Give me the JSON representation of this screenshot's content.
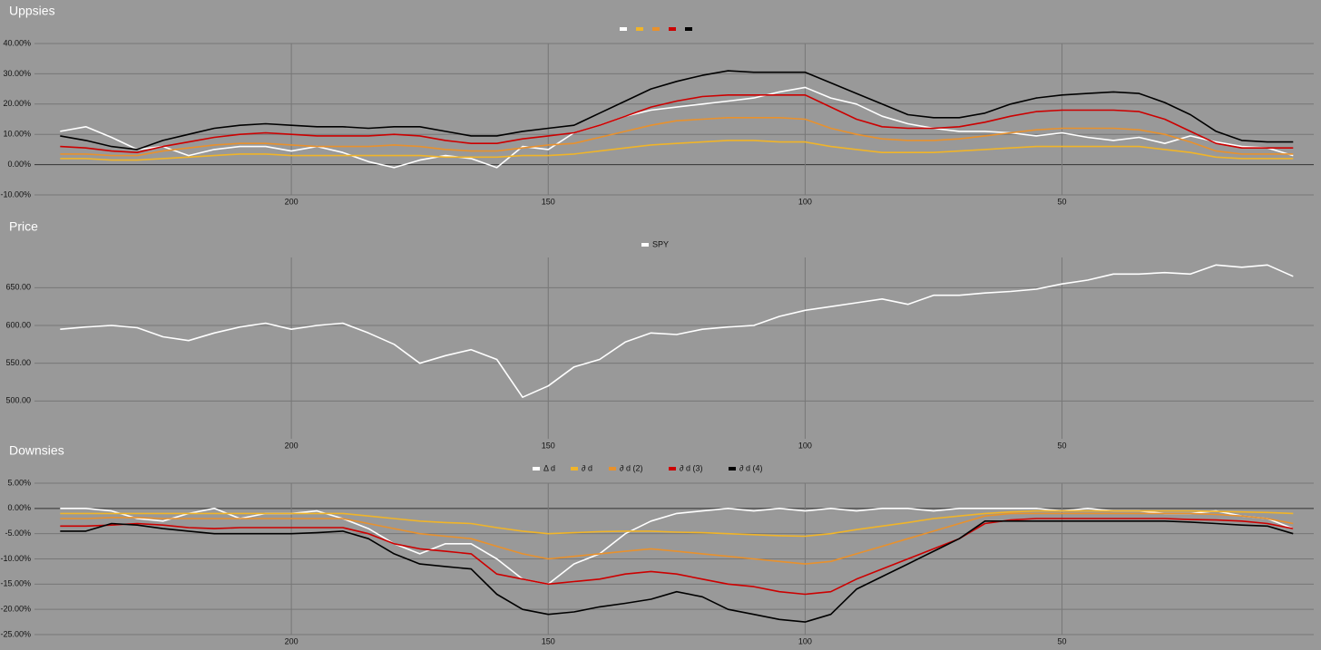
{
  "chart_data": [
    {
      "type": "line",
      "title": "Uppsies",
      "x": [
        245,
        240,
        235,
        230,
        225,
        220,
        215,
        210,
        205,
        200,
        195,
        190,
        185,
        180,
        175,
        170,
        165,
        160,
        155,
        150,
        145,
        140,
        135,
        130,
        125,
        120,
        115,
        110,
        105,
        100,
        95,
        90,
        85,
        80,
        75,
        70,
        65,
        60,
        55,
        50,
        45,
        40,
        35,
        30,
        25,
        20,
        15,
        10,
        5
      ],
      "xlim": [
        250,
        1
      ],
      "xticks": [
        200,
        150,
        100,
        50
      ],
      "ylim": [
        -10,
        40
      ],
      "yticks": [
        {
          "value": -10,
          "label": "-10.00%"
        },
        {
          "value": 0,
          "label": "0.00%"
        },
        {
          "value": 10,
          "label": "10.00%"
        },
        {
          "value": 20,
          "label": "20.00%"
        },
        {
          "value": 30,
          "label": "30.00%"
        },
        {
          "value": 40,
          "label": "40.00%"
        }
      ],
      "grid": true,
      "series": [
        {
          "color": "#ffffff",
          "values": [
            11,
            12.5,
            9,
            5,
            6,
            3,
            5,
            6,
            6,
            4.5,
            6,
            4,
            1,
            -1,
            1.5,
            3,
            2,
            -1,
            6,
            5,
            10.5,
            13,
            16,
            18,
            19,
            20,
            21,
            22,
            24,
            25.5,
            22,
            20,
            16,
            13.5,
            12,
            11,
            11,
            10.5,
            9.5,
            10.5,
            9,
            8,
            9,
            7,
            9.5,
            7.5,
            6,
            5.5,
            3
          ]
        },
        {
          "color": "#f0b429",
          "values": [
            2,
            2,
            1.5,
            1.5,
            2,
            2.5,
            3,
            3.5,
            3.5,
            3,
            3,
            3,
            3,
            3,
            3,
            2.5,
            2.5,
            2.5,
            3,
            3,
            3.5,
            4.5,
            5.5,
            6.5,
            7,
            7.5,
            8,
            8,
            7.5,
            7.5,
            6,
            5,
            4,
            4,
            4,
            4.5,
            5,
            5.5,
            6,
            6,
            6,
            6,
            6,
            5,
            4,
            2.5,
            2,
            2,
            2
          ]
        },
        {
          "color": "#e8912d",
          "values": [
            3.5,
            3.5,
            3,
            3,
            4.5,
            5.5,
            6.5,
            7,
            7,
            6.5,
            6,
            6,
            6,
            6.5,
            6,
            5,
            4.5,
            4.5,
            5.5,
            6.5,
            7,
            9,
            11,
            13,
            14.5,
            15,
            15.5,
            15.5,
            15.5,
            15,
            12,
            10,
            8.5,
            8,
            8,
            8.5,
            9.5,
            10.5,
            11.5,
            12,
            12,
            12,
            11.5,
            10,
            7.5,
            4.5,
            3.5,
            3.5,
            3.5
          ]
        },
        {
          "color": "#cc0000",
          "values": [
            6,
            5.5,
            4.5,
            4,
            6,
            7.5,
            9,
            10,
            10.5,
            10,
            9.5,
            9.5,
            9.5,
            10,
            9.5,
            8,
            7,
            7,
            8.5,
            9.5,
            10.5,
            13,
            16,
            19,
            21,
            22.5,
            23,
            23,
            23,
            23,
            19,
            15,
            12.5,
            12,
            12,
            12.5,
            14,
            16,
            17.5,
            18,
            18,
            18,
            17.5,
            15,
            11,
            7,
            5.5,
            5.5,
            5.5
          ]
        },
        {
          "color": "#000000",
          "values": [
            9.5,
            8,
            6,
            5,
            8,
            10,
            12,
            13,
            13.5,
            13,
            12.5,
            12.5,
            12,
            12.5,
            12.5,
            11,
            9.5,
            9.5,
            11,
            12,
            13,
            17,
            21,
            25,
            27.5,
            29.5,
            31,
            30.5,
            30.5,
            30.5,
            27,
            23.5,
            20,
            16.5,
            15.5,
            15.5,
            17,
            20,
            22,
            23,
            23.5,
            24,
            23.5,
            20.5,
            16.5,
            11,
            8,
            7.5,
            7.5
          ]
        }
      ]
    },
    {
      "type": "line",
      "title": "Price",
      "x": [
        245,
        240,
        235,
        230,
        225,
        220,
        215,
        210,
        205,
        200,
        195,
        190,
        185,
        180,
        175,
        170,
        165,
        160,
        155,
        150,
        145,
        140,
        135,
        130,
        125,
        120,
        115,
        110,
        105,
        100,
        95,
        90,
        85,
        80,
        75,
        70,
        65,
        60,
        55,
        50,
        45,
        40,
        35,
        30,
        25,
        20,
        15,
        10,
        5
      ],
      "xlim": [
        250,
        1
      ],
      "xticks": [
        200,
        150,
        100,
        50
      ],
      "ylim": [
        450,
        690
      ],
      "yticks": [
        {
          "value": 500,
          "label": "500.00"
        },
        {
          "value": 550,
          "label": "550.00"
        },
        {
          "value": 600,
          "label": "600.00"
        },
        {
          "value": 650,
          "label": "650.00"
        }
      ],
      "grid": true,
      "series": [
        {
          "name": "SPY",
          "color": "#ffffff",
          "values": [
            595,
            598,
            600,
            597,
            585,
            580,
            590,
            598,
            603,
            595,
            600,
            603,
            590,
            575,
            550,
            560,
            568,
            555,
            505,
            520,
            545,
            555,
            578,
            590,
            588,
            595,
            598,
            600,
            612,
            620,
            625,
            630,
            635,
            628,
            640,
            640,
            643,
            645,
            648,
            655,
            660,
            668,
            668,
            670,
            668,
            680,
            677,
            680,
            665
          ]
        }
      ]
    },
    {
      "type": "line",
      "title": "Downsies",
      "x": [
        245,
        240,
        235,
        230,
        225,
        220,
        215,
        210,
        205,
        200,
        195,
        190,
        185,
        180,
        175,
        170,
        165,
        160,
        155,
        150,
        145,
        140,
        135,
        130,
        125,
        120,
        115,
        110,
        105,
        100,
        95,
        90,
        85,
        80,
        75,
        70,
        65,
        60,
        55,
        50,
        45,
        40,
        35,
        30,
        25,
        20,
        15,
        10,
        5
      ],
      "xlim": [
        250,
        1
      ],
      "xticks": [
        200,
        150,
        100,
        50
      ],
      "ylim": [
        -25,
        5
      ],
      "yticks": [
        {
          "value": -25,
          "label": "-25.00%"
        },
        {
          "value": -20,
          "label": "-20.00%"
        },
        {
          "value": -15,
          "label": "-15.00%"
        },
        {
          "value": -10,
          "label": "-10.00%"
        },
        {
          "value": -5,
          "label": "-5.00%"
        },
        {
          "value": 0,
          "label": "0.00%"
        },
        {
          "value": 5,
          "label": "5.00%"
        }
      ],
      "grid": true,
      "series": [
        {
          "name": "Δ d",
          "color": "#ffffff",
          "values": [
            0,
            0,
            -0.5,
            -2,
            -2.5,
            -1,
            0,
            -2,
            -1,
            -1,
            -0.5,
            -2,
            -4,
            -7,
            -9,
            -7,
            -7,
            -10,
            -14,
            -15,
            -11,
            -9,
            -5,
            -2.5,
            -1,
            -0.5,
            0,
            -0.5,
            0,
            -0.5,
            0,
            -0.5,
            0,
            0,
            -0.5,
            0,
            0,
            0,
            0,
            -0.5,
            0,
            -0.5,
            -0.5,
            -1,
            -1,
            -0.5,
            -1.5,
            -2,
            -4
          ]
        },
        {
          "name": "∂ d",
          "color": "#f0b429",
          "values": [
            -1,
            -1,
            -1,
            -1,
            -1,
            -1,
            -1,
            -1,
            -1,
            -1,
            -1,
            -1,
            -1.5,
            -2,
            -2.5,
            -2.8,
            -3,
            -3.8,
            -4.5,
            -5,
            -4.8,
            -4.6,
            -4.5,
            -4.5,
            -4.7,
            -4.8,
            -5,
            -5.2,
            -5.4,
            -5.5,
            -5,
            -4.2,
            -3.5,
            -2.8,
            -2,
            -1.5,
            -1,
            -0.7,
            -0.5,
            -0.5,
            -0.5,
            -0.5,
            -0.5,
            -0.5,
            -0.5,
            -0.6,
            -0.7,
            -0.8,
            -1
          ]
        },
        {
          "name": "∂ d (2)",
          "color": "#e8912d",
          "values": [
            -2,
            -2,
            -1.8,
            -1.8,
            -2,
            -2,
            -2,
            -2,
            -2,
            -2,
            -2,
            -2,
            -3,
            -4,
            -5,
            -5.5,
            -6,
            -7.5,
            -9,
            -10,
            -9.5,
            -9,
            -8.5,
            -8,
            -8.5,
            -9,
            -9.5,
            -10,
            -10.5,
            -11,
            -10.5,
            -9,
            -7.5,
            -6,
            -4.5,
            -3,
            -1.5,
            -1,
            -1,
            -1,
            -1,
            -1,
            -1,
            -1,
            -1,
            -1.2,
            -1.5,
            -2,
            -3
          ]
        },
        {
          "name": "∂ d (3)",
          "color": "#cc0000",
          "values": [
            -3.5,
            -3.5,
            -3.3,
            -3,
            -3.3,
            -3.8,
            -4,
            -3.8,
            -3.8,
            -3.8,
            -3.8,
            -3.8,
            -5,
            -7,
            -8,
            -8.5,
            -9,
            -13,
            -14,
            -15,
            -14.5,
            -14,
            -13,
            -12.5,
            -13,
            -14,
            -15,
            -15.5,
            -16.5,
            -17,
            -16.5,
            -14,
            -12,
            -10,
            -8,
            -6,
            -3,
            -2.3,
            -2,
            -2,
            -2,
            -2,
            -2,
            -2,
            -2.2,
            -2.3,
            -2.5,
            -3,
            -4
          ]
        },
        {
          "name": "∂ d (4)",
          "color": "#000000",
          "values": [
            -4.5,
            -4.5,
            -3,
            -3.3,
            -4,
            -4.5,
            -5,
            -5,
            -5,
            -5,
            -4.8,
            -4.5,
            -6,
            -9,
            -11,
            -11.5,
            -12,
            -17,
            -20,
            -21,
            -20.5,
            -19.5,
            -18.8,
            -18,
            -16.5,
            -17.5,
            -20,
            -21,
            -22,
            -22.5,
            -21,
            -16,
            -13.5,
            -11,
            -8.5,
            -6,
            -2.5,
            -2.5,
            -2.5,
            -2.5,
            -2.5,
            -2.5,
            -2.5,
            -2.5,
            -2.7,
            -3,
            -3.3,
            -3.5,
            -5
          ]
        }
      ]
    }
  ]
}
